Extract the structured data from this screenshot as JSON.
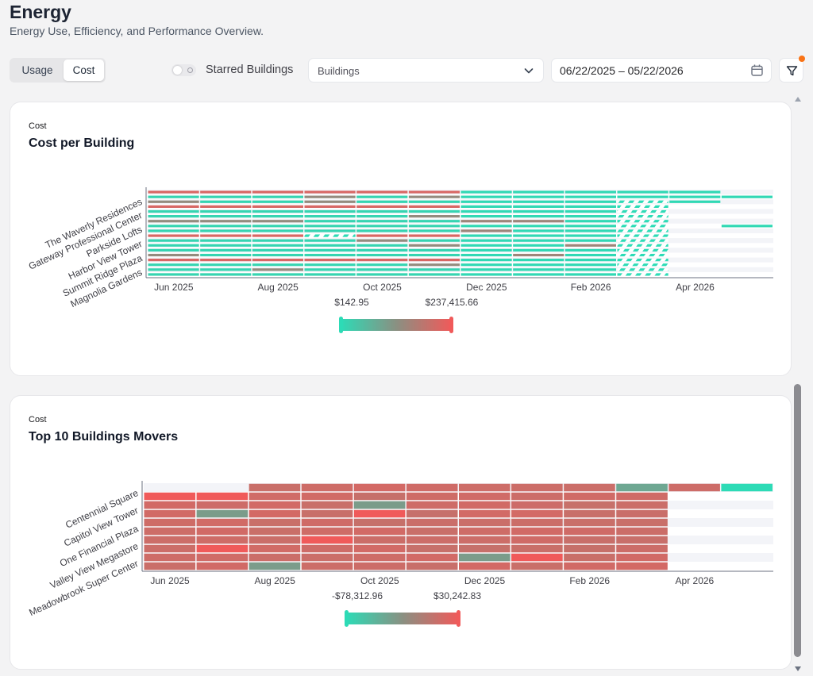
{
  "header": {
    "title": "Energy",
    "subtitle": "Energy Use, Efficiency, and Performance Overview."
  },
  "toolbar": {
    "view_options": [
      "Usage",
      "Cost"
    ],
    "view_selected": "Cost",
    "starred_toggle_label": "Starred Buildings",
    "starred_toggle_on": false,
    "buildings_select_placeholder": "Buildings",
    "date_range": "06/22/2025 – 05/22/2026",
    "filter_badge_active": true
  },
  "icons": {
    "chevron": "chevron-down-icon",
    "calendar": "calendar-icon",
    "filter": "filter-funnel-icon"
  },
  "colors": {
    "low": "#2ddbb6",
    "high": "#f05a5a",
    "badge": "#f97316"
  },
  "cards": [
    {
      "eyebrow": "Cost",
      "title": "Cost per Building",
      "scale_min_label": "$142.95",
      "scale_max_label": "$237,415.66"
    },
    {
      "eyebrow": "Cost",
      "title": "Top 10 Buildings Movers",
      "scale_min_label": "-$78,312.96",
      "scale_max_label": "$30,242.83"
    }
  ],
  "chart_data": [
    {
      "type": "heatmap",
      "title": "Cost per Building",
      "x_tick_labels": [
        "Jun 2025",
        "Aug 2025",
        "Oct 2025",
        "Dec 2025",
        "Feb 2026",
        "Apr 2026"
      ],
      "y_tick_labels": [
        "The Waverly Residences",
        "Gateway Professional Center",
        "Parkside Lofts",
        "Harbor View Tower",
        "Summit Ridge Plaza",
        "Magnolia Gardens"
      ],
      "color_scale": {
        "min": 142.95,
        "max": 237415.66,
        "min_label": "$142.95",
        "max_label": "$237,415.66",
        "colors": [
          "#2ddbb6",
          "#f05a5a"
        ]
      },
      "months": 12,
      "rows": 18,
      "mostly_low_values": true
    },
    {
      "type": "heatmap",
      "title": "Top 10 Buildings Movers",
      "x_tick_labels": [
        "Jun 2025",
        "Aug 2025",
        "Oct 2025",
        "Dec 2025",
        "Feb 2026",
        "Apr 2026"
      ],
      "y_tick_labels": [
        "Centennial Square",
        "Capitol View Tower",
        "One Financial Plaza",
        "Valley View Megastore",
        "Meadowbrook Super Center"
      ],
      "color_scale": {
        "min": -78312.96,
        "max": 30242.83,
        "min_label": "-$78,312.96",
        "max_label": "$30,242.83",
        "colors": [
          "#2ddbb6",
          "#f05a5a"
        ]
      },
      "months": 12,
      "rows": 10,
      "mostly_high_values": true
    }
  ]
}
